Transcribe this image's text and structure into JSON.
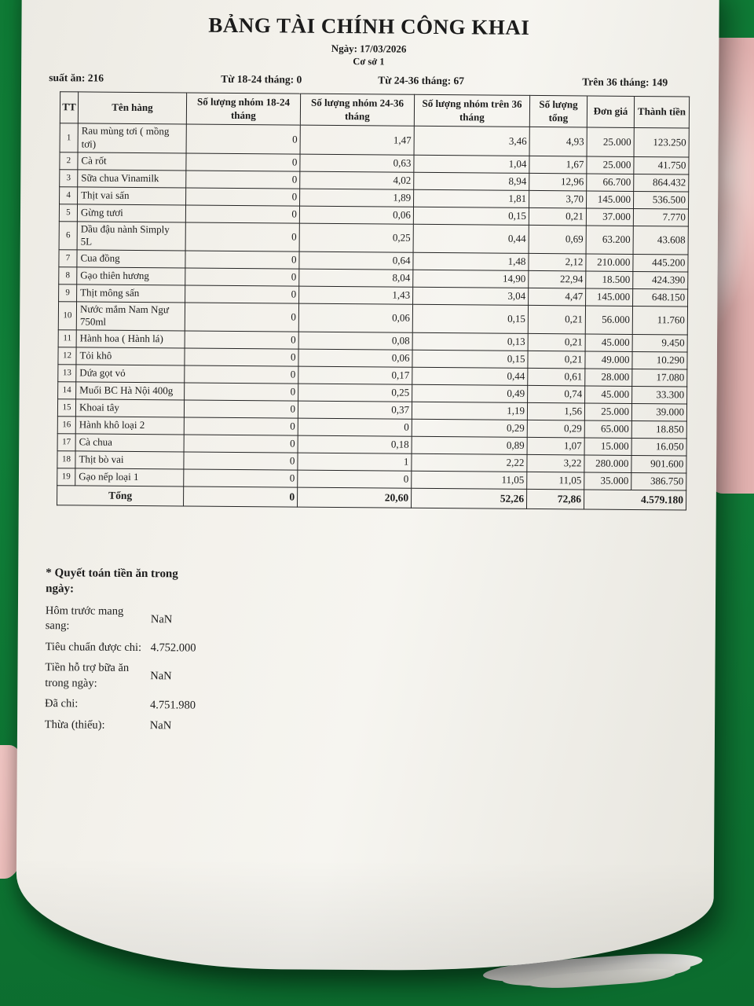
{
  "colors": {
    "green_bg": "#0f7a35",
    "pink_cloth": "#eec4c1",
    "paper": "#f3f1eb",
    "ink": "#1b1b1b"
  },
  "page": {
    "title": "BẢNG TÀI CHÍNH CÔNG KHAI",
    "date": "Ngày: 17/03/2026",
    "branch": "Cơ sở 1",
    "stats": [
      {
        "label": "suất ăn: 216"
      },
      {
        "label": "Từ 18-24 tháng: 0"
      },
      {
        "label": "Từ 24-36 tháng: 67"
      },
      {
        "label": "Trên 36 tháng: 149"
      }
    ]
  },
  "table": {
    "headers": [
      "TT",
      "Tên hàng",
      "Số lượng nhóm 18-24 tháng",
      "Số lượng nhóm 24-36 tháng",
      "Số lượng nhóm trên 36 tháng",
      "Số lượng tổng",
      "Đơn giá",
      "Thành tiền"
    ],
    "rows": [
      [
        "1",
        "Rau mùng tơi ( mồng tơi)",
        "0",
        "1,47",
        "3,46",
        "4,93",
        "25.000",
        "123.250"
      ],
      [
        "2",
        "Cà rốt",
        "0",
        "0,63",
        "1,04",
        "1,67",
        "25.000",
        "41.750"
      ],
      [
        "3",
        "Sữa chua Vinamilk",
        "0",
        "4,02",
        "8,94",
        "12,96",
        "66.700",
        "864.432"
      ],
      [
        "4",
        "Thịt vai sấn",
        "0",
        "1,89",
        "1,81",
        "3,70",
        "145.000",
        "536.500"
      ],
      [
        "5",
        "Gừng tươi",
        "0",
        "0,06",
        "0,15",
        "0,21",
        "37.000",
        "7.770"
      ],
      [
        "6",
        "Dầu đậu nành Simply 5L",
        "0",
        "0,25",
        "0,44",
        "0,69",
        "63.200",
        "43.608"
      ],
      [
        "7",
        "Cua đồng",
        "0",
        "0,64",
        "1,48",
        "2,12",
        "210.000",
        "445.200"
      ],
      [
        "8",
        "Gạo thiên hương",
        "0",
        "8,04",
        "14,90",
        "22,94",
        "18.500",
        "424.390"
      ],
      [
        "9",
        "Thịt mông sấn",
        "0",
        "1,43",
        "3,04",
        "4,47",
        "145.000",
        "648.150"
      ],
      [
        "10",
        "Nước mắm Nam Ngư 750ml",
        "0",
        "0,06",
        "0,15",
        "0,21",
        "56.000",
        "11.760"
      ],
      [
        "11",
        "Hành hoa ( Hành lá)",
        "0",
        "0,08",
        "0,13",
        "0,21",
        "45.000",
        "9.450"
      ],
      [
        "12",
        "Tỏi khô",
        "0",
        "0,06",
        "0,15",
        "0,21",
        "49.000",
        "10.290"
      ],
      [
        "13",
        "Dứa gọt vỏ",
        "0",
        "0,17",
        "0,44",
        "0,61",
        "28.000",
        "17.080"
      ],
      [
        "14",
        "Muối BC Hà Nội 400g",
        "0",
        "0,25",
        "0,49",
        "0,74",
        "45.000",
        "33.300"
      ],
      [
        "15",
        "Khoai tây",
        "0",
        "0,37",
        "1,19",
        "1,56",
        "25.000",
        "39.000"
      ],
      [
        "16",
        "Hành khô loại 2",
        "0",
        "0",
        "0,29",
        "0,29",
        "65.000",
        "18.850"
      ],
      [
        "17",
        "Cà chua",
        "0",
        "0,18",
        "0,89",
        "1,07",
        "15.000",
        "16.050"
      ],
      [
        "18",
        "Thịt bò vai",
        "0",
        "1",
        "2,22",
        "3,22",
        "280.000",
        "901.600"
      ],
      [
        "19",
        "Gạo nếp loại 1",
        "0",
        "0",
        "11,05",
        "11,05",
        "35.000",
        "386.750"
      ]
    ],
    "total_row": {
      "label": "Tổng",
      "g18_24": "0",
      "g24_36": "20,60",
      "g36": "52,26",
      "sum": "72,86",
      "amount": "4.579.180"
    }
  },
  "settlement": {
    "title": "* Quyết toán tiền ăn trong ngày:",
    "items": [
      {
        "label": "Hôm trước mang sang:",
        "value": "NaN"
      },
      {
        "label": "Tiêu chuẩn được chi:",
        "value": "4.752.000"
      },
      {
        "label": "Tiền hỗ trợ bữa ăn trong ngày:",
        "value": "NaN"
      },
      {
        "label": "Đã chi:",
        "value": "4.751.980"
      },
      {
        "label": "Thừa (thiếu):",
        "value": "NaN"
      }
    ]
  }
}
